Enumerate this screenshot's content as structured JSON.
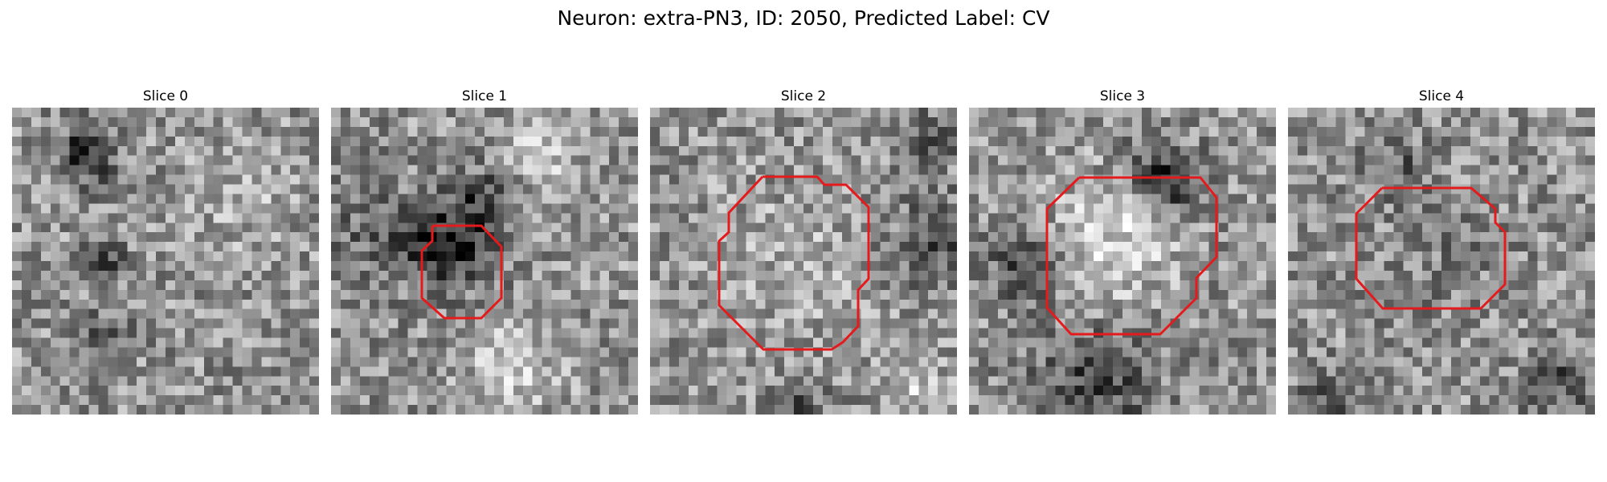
{
  "figure": {
    "title": "Neuron: extra-PN3, ID: 2050, Predicted Label: CV"
  },
  "panels": [
    {
      "title": "Slice 0",
      "has_contour": false,
      "contour_color": "#e41a1c"
    },
    {
      "title": "Slice 1",
      "has_contour": true,
      "contour_color": "#e41a1c"
    },
    {
      "title": "Slice 2",
      "has_contour": true,
      "contour_color": "#e41a1c"
    },
    {
      "title": "Slice 3",
      "has_contour": true,
      "contour_color": "#e41a1c"
    },
    {
      "title": "Slice 4",
      "has_contour": true,
      "contour_color": "#e41a1c"
    }
  ],
  "colormap": "gray"
}
